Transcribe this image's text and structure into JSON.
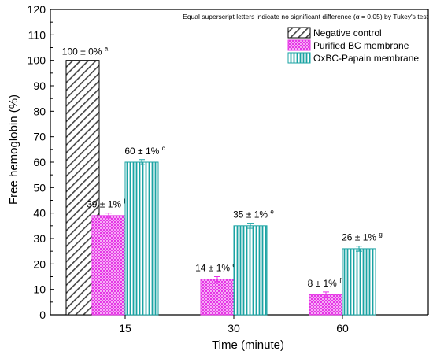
{
  "chart_data": {
    "type": "bar",
    "xlabel": "Time (minute)",
    "ylabel": "Free hemoglobin (%)",
    "ylim": [
      0,
      120
    ],
    "yticks": [
      0,
      10,
      20,
      30,
      40,
      50,
      60,
      70,
      80,
      90,
      100,
      110,
      120
    ],
    "categories": [
      "15",
      "30",
      "60"
    ],
    "note": "Equal superscript letters indicate no significant difference (α = 0.05) by Tukey's test",
    "legend_position": "top-right",
    "negative_control": {
      "name": "Negative control",
      "value": 100,
      "label": "100 ± 0%",
      "letter": "a",
      "color": "#555555"
    },
    "series": [
      {
        "name": "Purified BC membrane",
        "color": "#e633e6",
        "values": [
          39,
          14,
          8
        ],
        "errors": [
          1,
          1,
          1
        ],
        "labels": [
          "39 ± 1%",
          "14 ± 1%",
          "8 ± 1%"
        ],
        "letters": [
          "b",
          "d",
          "f"
        ]
      },
      {
        "name": "OxBC-Papain membrane",
        "color": "#1aa3a3",
        "values": [
          60,
          35,
          26
        ],
        "errors": [
          1,
          1,
          1
        ],
        "labels": [
          "60 ± 1%",
          "35 ± 1%",
          "26 ± 1%"
        ],
        "letters": [
          "c",
          "e",
          "g"
        ]
      }
    ]
  }
}
